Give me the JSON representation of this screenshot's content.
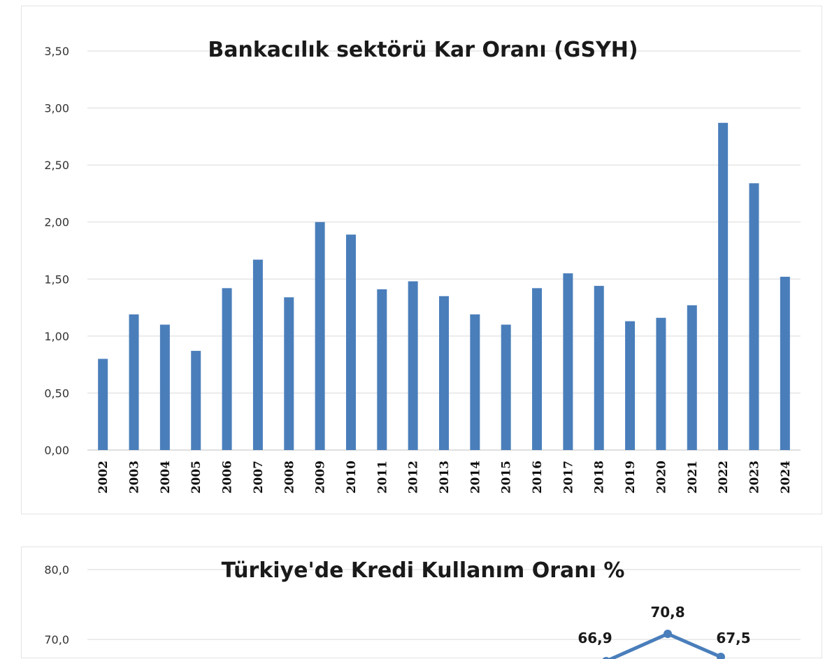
{
  "chart_data": [
    {
      "type": "bar",
      "title": "Bankacılık sektörü Kar Oranı (GSYH)",
      "categories": [
        "2002",
        "2003",
        "2004",
        "2005",
        "2006",
        "2007",
        "2008",
        "2009",
        "2010",
        "2011",
        "2012",
        "2013",
        "2014",
        "2015",
        "2016",
        "2017",
        "2018",
        "2019",
        "2020",
        "2021",
        "2022",
        "2023",
        "2024"
      ],
      "values": [
        0.8,
        1.19,
        1.1,
        0.87,
        1.42,
        1.67,
        1.34,
        2.0,
        1.89,
        1.41,
        1.48,
        1.35,
        1.19,
        1.1,
        1.42,
        1.55,
        1.44,
        1.13,
        1.16,
        1.27,
        2.87,
        2.34,
        1.52
      ],
      "ylim": [
        0,
        3.5
      ],
      "yticks": [
        "0,00",
        "0,50",
        "1,00",
        "1,50",
        "2,00",
        "2,50",
        "3,00",
        "3,50"
      ],
      "grid": true,
      "color": "#4a7ebb"
    },
    {
      "type": "line",
      "title": "Türkiye'de Kredi Kullanım Oranı %",
      "yticks": [
        "70,0",
        "80,0"
      ],
      "ylim": [
        70,
        80
      ],
      "data_labels": [
        "66,9",
        "70,8",
        "67,5"
      ],
      "grid": true,
      "color": "#4a7ebb"
    }
  ]
}
